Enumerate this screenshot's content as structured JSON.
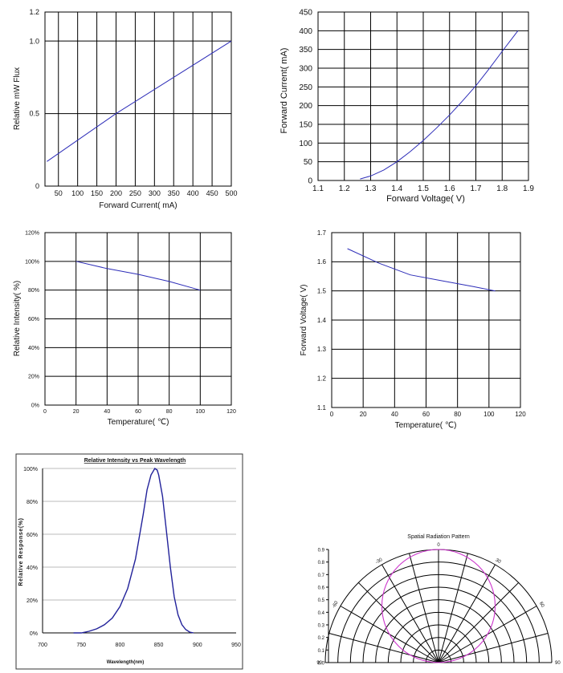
{
  "colors": {
    "grid": "#000000",
    "series": "#2d2db8",
    "spectrum": "#22229a",
    "radiation": "#cc33cc",
    "frame": "#333333"
  },
  "chart_data": [
    {
      "id": "flux",
      "type": "line",
      "title": "",
      "xlabel": "Forward Current(  mA)",
      "ylabel": "Relative mW Flux",
      "xlim": [
        15,
        500
      ],
      "ylim": [
        0,
        1.2
      ],
      "xticks": [
        50,
        100,
        150,
        200,
        250,
        300,
        350,
        400,
        450,
        500
      ],
      "xtick_labels": [
        "50",
        "100",
        "150",
        "200",
        "250",
        "300",
        "350",
        "400",
        "450",
        "500"
      ],
      "yticks": [
        0,
        0.5,
        1.0,
        1.2
      ],
      "ytick_labels": [
        "0",
        "0.5",
        "1.0",
        "1.2"
      ],
      "xgrid": [
        50,
        100,
        150,
        200,
        250,
        300,
        350,
        400,
        450,
        500
      ],
      "ygrid": [
        0.5,
        1.0
      ],
      "series": [
        {
          "name": "flux",
          "x": [
            20,
            200,
            350,
            500
          ],
          "y": [
            0.17,
            0.5,
            0.75,
            1.0
          ]
        }
      ]
    },
    {
      "id": "iv",
      "type": "line",
      "title": "",
      "xlabel": "Forward Voltage(  V)",
      "ylabel": "Forward Current(  mA)",
      "xlim": [
        1.1,
        1.9
      ],
      "ylim": [
        0,
        450
      ],
      "xticks": [
        1.1,
        1.2,
        1.3,
        1.4,
        1.5,
        1.6,
        1.7,
        1.8,
        1.9
      ],
      "xtick_labels": [
        "1.1",
        "1.2",
        "1.3",
        "1.4",
        "1.5",
        "1.6",
        "1.7",
        "1.8",
        "1.9"
      ],
      "yticks": [
        0,
        50,
        100,
        150,
        200,
        250,
        300,
        350,
        400,
        450
      ],
      "ytick_labels": [
        "0",
        "50",
        "100",
        "150",
        "200",
        "250",
        "300",
        "350",
        "400",
        "450"
      ],
      "xgrid": [
        1.2,
        1.3,
        1.4,
        1.5,
        1.6,
        1.7,
        1.8
      ],
      "ygrid": [
        50,
        100,
        150,
        200,
        250,
        300,
        350,
        400
      ],
      "series": [
        {
          "name": "IV",
          "x": [
            1.26,
            1.3,
            1.35,
            1.4,
            1.45,
            1.5,
            1.55,
            1.6,
            1.65,
            1.7,
            1.75,
            1.8,
            1.86
          ],
          "y": [
            4,
            12,
            28,
            50,
            77,
            107,
            140,
            175,
            213,
            253,
            298,
            345,
            400
          ]
        }
      ]
    },
    {
      "id": "intensity_temp",
      "type": "line",
      "title": "",
      "xlabel": "Temperature(  ℃)",
      "ylabel": "Relative Intensity(  %)",
      "xlim": [
        0,
        120
      ],
      "ylim": [
        0,
        120
      ],
      "xticks": [
        0,
        20,
        40,
        60,
        80,
        100,
        120
      ],
      "xtick_labels": [
        "0",
        "20",
        "40",
        "60",
        "80",
        "100",
        "120"
      ],
      "yticks": [
        0,
        20,
        40,
        60,
        80,
        100,
        120
      ],
      "ytick_labels": [
        "0%",
        "20%",
        "40%",
        "60%",
        "80%",
        "100%",
        "120%"
      ],
      "xgrid": [
        20,
        40,
        60,
        80,
        100
      ],
      "ygrid": [
        20,
        40,
        60,
        80,
        100
      ],
      "series": [
        {
          "name": "intensity",
          "x": [
            20,
            40,
            60,
            80,
            100
          ],
          "y": [
            100,
            95,
            91,
            86,
            80
          ]
        }
      ]
    },
    {
      "id": "vf_temp",
      "type": "line",
      "title": "",
      "xlabel": "Temperature(  ℃)",
      "ylabel": "Forward Voltage(  V)",
      "xlim": [
        0,
        120
      ],
      "ylim": [
        1.1,
        1.7
      ],
      "xticks": [
        0,
        20,
        40,
        60,
        80,
        100,
        120
      ],
      "xtick_labels": [
        "0",
        "20",
        "40",
        "60",
        "80",
        "100",
        "120"
      ],
      "yticks": [
        1.1,
        1.2,
        1.3,
        1.4,
        1.5,
        1.6,
        1.7
      ],
      "ytick_labels": [
        "1.1",
        "1.2",
        "1.3",
        "1.4",
        "1.5",
        "1.6",
        "1.7"
      ],
      "xgrid": [
        20,
        40,
        60,
        80,
        100
      ],
      "ygrid": [
        1.2,
        1.3,
        1.4,
        1.5,
        1.6
      ],
      "series": [
        {
          "name": "Vf",
          "x": [
            10,
            30,
            50,
            70,
            90,
            104
          ],
          "y": [
            1.645,
            1.595,
            1.555,
            1.535,
            1.515,
            1.5
          ]
        }
      ]
    },
    {
      "id": "spectrum",
      "type": "line",
      "title": "Relative Intensity vs Peak Wavelength",
      "xlabel": "Wavelength(nm)",
      "ylabel": "Relative Response(%)",
      "xlim": [
        700,
        950
      ],
      "ylim": [
        0,
        100
      ],
      "xticks": [
        700,
        750,
        800,
        850,
        900,
        950
      ],
      "xtick_labels": [
        "700",
        "750",
        "800",
        "850",
        "900",
        "950"
      ],
      "yticks": [
        0,
        20,
        40,
        60,
        80,
        100
      ],
      "ytick_labels": [
        "0%",
        "20%",
        "40%",
        "60%",
        "80%",
        "100%"
      ],
      "ygrid": [
        20,
        40,
        60,
        80
      ],
      "series": [
        {
          "name": "spectrum",
          "x": [
            740,
            750,
            760,
            770,
            780,
            790,
            800,
            810,
            820,
            830,
            835,
            840,
            845,
            848,
            850,
            855,
            860,
            865,
            870,
            875,
            880,
            885,
            890,
            895
          ],
          "y": [
            0,
            0,
            1,
            2.5,
            5,
            9,
            16,
            27,
            45,
            72,
            87,
            96,
            100,
            99,
            96,
            83,
            62,
            40,
            22,
            11,
            5,
            2,
            0.5,
            0
          ]
        }
      ]
    },
    {
      "id": "radiation",
      "type": "polar",
      "title": "Spatial Radiation Pattern",
      "radial_ticks": [
        0.0,
        0.1,
        0.2,
        0.3,
        0.4,
        0.5,
        0.6,
        0.7,
        0.8,
        0.9
      ],
      "radial_tick_labels": [
        "0.0",
        "0.1",
        "0.2",
        "0.3",
        "0.4",
        "0.5",
        "0.6",
        "0.7",
        "0.8",
        "0.9"
      ],
      "angle_labels": [
        {
          "angle": -90,
          "label": "90"
        },
        {
          "angle": -60,
          "label": "-60"
        },
        {
          "angle": -30,
          "label": "-30"
        },
        {
          "angle": 0,
          "label": "0"
        },
        {
          "angle": 30,
          "label": "30"
        },
        {
          "angle": 60,
          "label": "60"
        },
        {
          "angle": 90,
          "label": "90"
        }
      ],
      "spokes": [
        -90,
        -75,
        -60,
        -45,
        -30,
        -15,
        0,
        15,
        30,
        45,
        60,
        75,
        90
      ],
      "pattern": {
        "shape": "circle",
        "max_r": 0.9
      }
    }
  ]
}
